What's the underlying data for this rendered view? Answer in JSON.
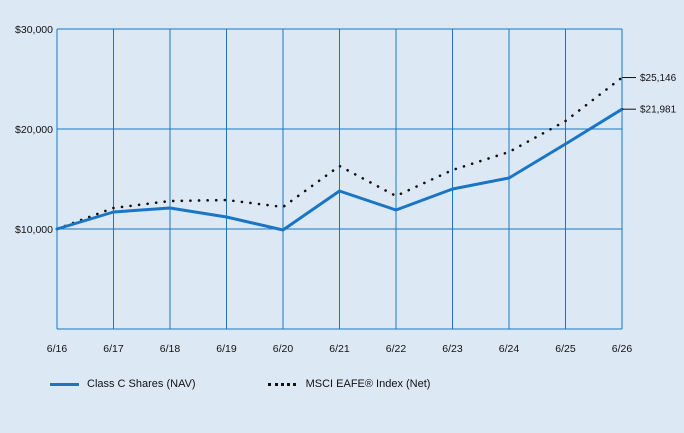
{
  "chart_data": {
    "type": "line",
    "title": "",
    "xlabel": "",
    "ylabel": "",
    "x": [
      "6/16",
      "6/17",
      "6/18",
      "6/19",
      "6/20",
      "6/21",
      "6/22",
      "6/23",
      "6/24",
      "6/25",
      "6/26"
    ],
    "y_ticks": [
      0,
      10000,
      20000,
      30000
    ],
    "y_tick_labels": [
      "",
      "$10,000",
      "$20,000",
      "$30,000"
    ],
    "ylim": [
      0,
      30000
    ],
    "grid": true,
    "legend_position": "bottom",
    "series": [
      {
        "name": "Class C Shares (NAV)",
        "style": "solid",
        "color": "#1a76c5",
        "values": [
          10000,
          11700,
          12100,
          11200,
          9900,
          13800,
          11900,
          14000,
          15100,
          18500,
          21981
        ],
        "end_label": "$21,981"
      },
      {
        "name": "MSCI EAFE® Index (Net)",
        "style": "dotted",
        "color": "#111111",
        "values": [
          10000,
          12100,
          12800,
          12900,
          12200,
          16300,
          13300,
          15900,
          17700,
          20800,
          25146
        ],
        "end_label": "$25,146"
      }
    ]
  }
}
